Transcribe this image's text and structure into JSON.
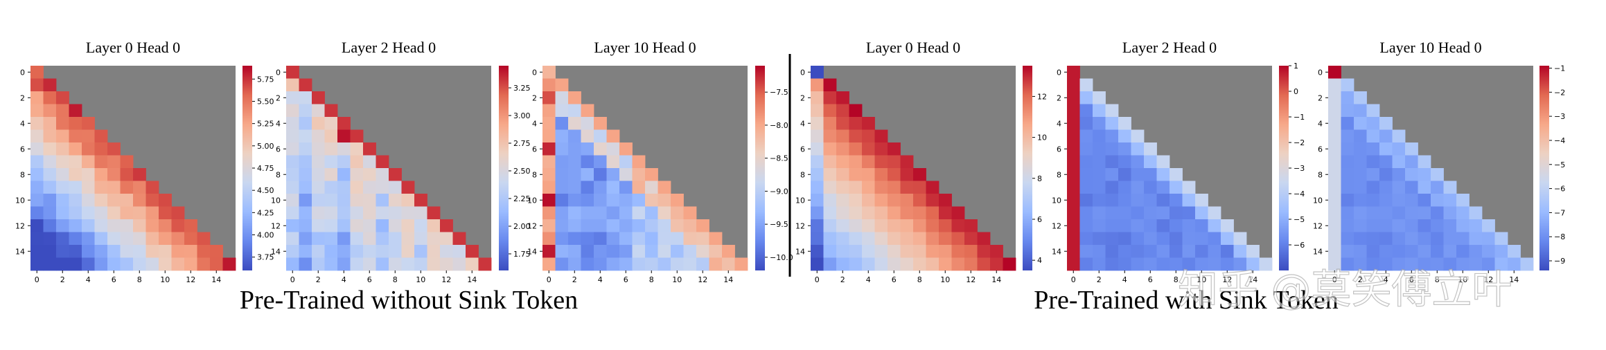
{
  "figure": {
    "groups": [
      {
        "caption": "Pre-Trained without Sink Token"
      },
      {
        "caption": "Pre-Trained with Sink Token"
      }
    ],
    "watermark": "知乎 @莫笑傅立叶",
    "colormap": {
      "name": "coolwarm",
      "stops": [
        "#3b4cc0",
        "#6788ee",
        "#9abbff",
        "#c9d7f0",
        "#edd1c2",
        "#f7a889",
        "#e26952",
        "#b40426"
      ]
    },
    "masked_color": "#808080"
  },
  "chart_data": [
    {
      "type": "heatmap",
      "title": "Layer 0 Head 0",
      "group": "Pre-Trained without Sink Token",
      "size": 16,
      "x_ticks": [
        0,
        2,
        4,
        6,
        8,
        10,
        12,
        14
      ],
      "y_ticks": [
        0,
        2,
        4,
        6,
        8,
        10,
        12,
        14
      ],
      "vmin": 3.6,
      "vmax": 5.9,
      "colorbar_ticks": [
        3.75,
        4.0,
        4.25,
        4.5,
        4.75,
        5.0,
        5.25,
        5.5,
        5.75
      ],
      "colorbar_labels": [
        "3.75",
        "4.00",
        "4.25",
        "4.50",
        "4.75",
        "5.00",
        "5.25",
        "5.50",
        "5.75"
      ],
      "pattern": "diag_high_gradient"
    },
    {
      "type": "heatmap",
      "title": "Layer 2 Head 0",
      "group": "Pre-Trained without Sink Token",
      "size": 16,
      "x_ticks": [
        0,
        2,
        4,
        6,
        8,
        10,
        12,
        14
      ],
      "y_ticks": [
        0,
        2,
        4,
        6,
        8,
        10,
        12,
        14
      ],
      "vmin": 1.6,
      "vmax": 3.45,
      "colorbar_ticks": [
        1.75,
        2.0,
        2.25,
        2.5,
        2.75,
        3.0,
        3.25
      ],
      "colorbar_labels": [
        "1.75",
        "2.00",
        "2.25",
        "2.50",
        "2.75",
        "3.00",
        "3.25"
      ],
      "pattern": "diag_high_mixed"
    },
    {
      "type": "heatmap",
      "title": "Layer 10 Head 0",
      "group": "Pre-Trained without Sink Token",
      "size": 16,
      "x_ticks": [
        0,
        2,
        4,
        6,
        8,
        10,
        12,
        14
      ],
      "y_ticks": [
        0,
        2,
        4,
        6,
        8,
        10,
        12,
        14
      ],
      "vmin": -10.2,
      "vmax": -7.1,
      "colorbar_ticks": [
        -10.0,
        -9.5,
        -9.0,
        -8.5,
        -8.0,
        -7.5
      ],
      "colorbar_labels": [
        "−10.0",
        "−9.5",
        "−9.0",
        "−8.5",
        "−8.0",
        "−7.5"
      ],
      "pattern": "first_col_diag_high"
    },
    {
      "type": "heatmap",
      "title": "Layer 0 Head 0",
      "group": "Pre-Trained with Sink Token",
      "size": 16,
      "x_ticks": [
        0,
        2,
        4,
        6,
        8,
        10,
        12,
        14
      ],
      "y_ticks": [
        0,
        2,
        4,
        6,
        8,
        10,
        12,
        14
      ],
      "vmin": 3.5,
      "vmax": 13.5,
      "colorbar_ticks": [
        4,
        6,
        8,
        10,
        12
      ],
      "colorbar_labels": [
        "4",
        "6",
        "8",
        "10",
        "12"
      ],
      "pattern": "sink_diag_high"
    },
    {
      "type": "heatmap",
      "title": "Layer 2 Head 0",
      "group": "Pre-Trained with Sink Token",
      "size": 16,
      "x_ticks": [
        0,
        2,
        4,
        6,
        8,
        10,
        12,
        14
      ],
      "y_ticks": [
        0,
        2,
        4,
        6,
        8,
        10,
        12,
        14
      ],
      "vmin": -7.0,
      "vmax": 1.0,
      "colorbar_ticks": [
        -6,
        -5,
        -4,
        -3,
        -2,
        -1,
        0,
        1
      ],
      "colorbar_labels": [
        "−6",
        "−5",
        "−4",
        "−3",
        "−2",
        "−1",
        "0",
        "1"
      ],
      "pattern": "sink_column_high"
    },
    {
      "type": "heatmap",
      "title": "Layer 10 Head 0",
      "group": "Pre-Trained with Sink Token",
      "size": 16,
      "x_ticks": [
        0,
        2,
        4,
        6,
        8,
        10,
        12,
        14
      ],
      "y_ticks": [
        0,
        2,
        4,
        6,
        8,
        10,
        12,
        14
      ],
      "vmin": -9.4,
      "vmax": -0.9,
      "colorbar_ticks": [
        -9,
        -8,
        -7,
        -6,
        -5,
        -4,
        -3,
        -2,
        -1
      ],
      "colorbar_labels": [
        "−9",
        "−8",
        "−7",
        "−6",
        "−5",
        "−4",
        "−3",
        "−2",
        "−1"
      ],
      "pattern": "sink_first_cell_high"
    }
  ]
}
